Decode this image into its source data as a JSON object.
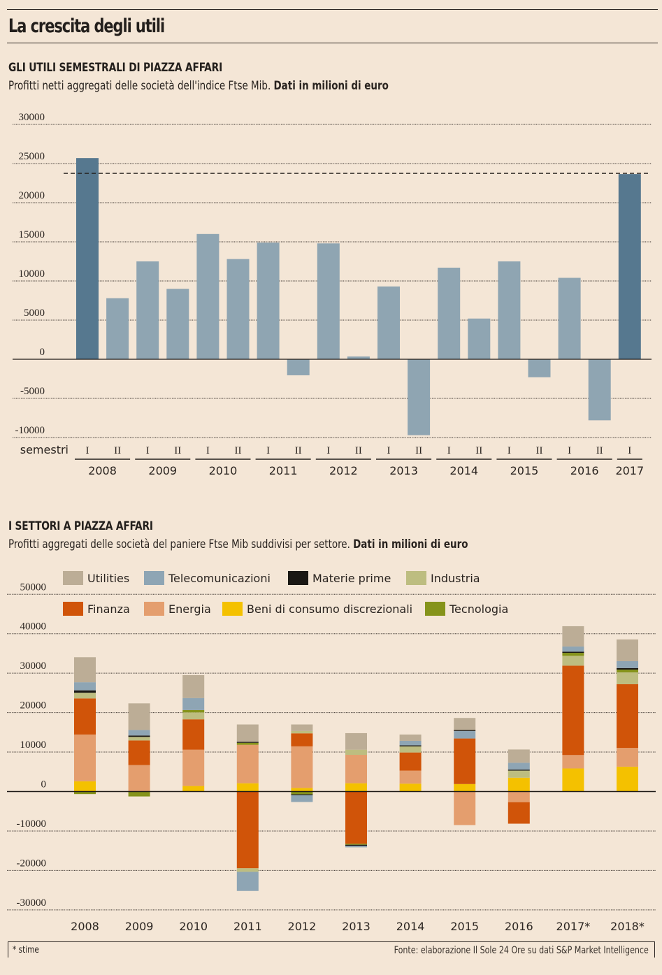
{
  "header": {
    "title": "La crescita degli utili"
  },
  "footer": {
    "note": "* stime",
    "source": "Fonte: elaborazione Il Sole 24 Ore su dati S&P Market Intelligence"
  },
  "colors": {
    "background": "#f4e6d6",
    "bar_highlight": "#56788f",
    "bar_normal": "#8fa5b2",
    "Utilities": "#bcad96",
    "Telecomunicazioni": "#8ea5b4",
    "Materie prime": "#1a1814",
    "Industria": "#bdbd80",
    "Finanza": "#d05409",
    "Energia": "#e49e6e",
    "Beni di consumo discrezionali": "#f4c100",
    "Tecnologia": "#85931a"
  },
  "chart_data": [
    {
      "type": "bar",
      "title": "GLI UTILI SEMESTRALI DI PIAZZA AFFARI",
      "subtitle": "Profitti netti aggregati delle società dell'indice Ftse Mib.",
      "subtitle_bold": "Dati in milioni di euro",
      "xlabel": "semestri",
      "ylabel": "",
      "ylim": [
        -10000,
        30000
      ],
      "yticks": [
        30000,
        25000,
        20000,
        15000,
        10000,
        5000,
        0,
        -5000,
        -10000
      ],
      "ytick_labels": [
        "30000",
        "25000",
        "20000",
        "15000",
        "10000",
        "5000",
        "0",
        "-5000",
        "-10000"
      ],
      "grid": true,
      "reference_line": {
        "value": 23750,
        "style": "dashed"
      },
      "years": [
        "2008",
        "2009",
        "2010",
        "2011",
        "2012",
        "2013",
        "2014",
        "2015",
        "2016",
        "2017"
      ],
      "semesters": [
        {
          "year": "2008",
          "sem": "I",
          "value": 25700,
          "highlight": true
        },
        {
          "year": "2008",
          "sem": "II",
          "value": 7800,
          "highlight": false
        },
        {
          "year": "2009",
          "sem": "I",
          "value": 12500,
          "highlight": false
        },
        {
          "year": "2009",
          "sem": "II",
          "value": 9000,
          "highlight": false
        },
        {
          "year": "2010",
          "sem": "I",
          "value": 16000,
          "highlight": false
        },
        {
          "year": "2010",
          "sem": "II",
          "value": 12800,
          "highlight": false
        },
        {
          "year": "2011",
          "sem": "I",
          "value": 14900,
          "highlight": false
        },
        {
          "year": "2011",
          "sem": "II",
          "value": -2050,
          "highlight": false
        },
        {
          "year": "2012",
          "sem": "I",
          "value": 14800,
          "highlight": false
        },
        {
          "year": "2012",
          "sem": "II",
          "value": 350,
          "highlight": false
        },
        {
          "year": "2013",
          "sem": "I",
          "value": 9300,
          "highlight": false
        },
        {
          "year": "2013",
          "sem": "II",
          "value": -9700,
          "highlight": false
        },
        {
          "year": "2014",
          "sem": "I",
          "value": 11700,
          "highlight": false
        },
        {
          "year": "2014",
          "sem": "II",
          "value": 5200,
          "highlight": false
        },
        {
          "year": "2015",
          "sem": "I",
          "value": 12500,
          "highlight": false
        },
        {
          "year": "2015",
          "sem": "II",
          "value": -2300,
          "highlight": false
        },
        {
          "year": "2016",
          "sem": "I",
          "value": 10400,
          "highlight": false
        },
        {
          "year": "2016",
          "sem": "II",
          "value": -7800,
          "highlight": false
        },
        {
          "year": "2017",
          "sem": "I",
          "value": 23650,
          "highlight": true
        }
      ]
    },
    {
      "type": "bar",
      "stacked": true,
      "title": "I SETTORI A PIAZZA AFFARI",
      "subtitle": "Profitti aggregati delle società del paniere Ftse Mib suddivisi per settore.",
      "subtitle_bold": "Dati in milioni di euro",
      "xlabel": "",
      "ylabel": "",
      "ylim": [
        -30000,
        50000
      ],
      "yticks": [
        50000,
        40000,
        30000,
        20000,
        10000,
        0,
        -10000,
        -20000,
        -30000
      ],
      "ytick_labels": [
        "50000",
        "40000",
        "30000",
        "20000",
        "10000",
        "0",
        "-10000",
        "-20000",
        "-30000"
      ],
      "grid": true,
      "legend_position": "top",
      "legend": [
        [
          "Utilities",
          "Telecomunicazioni",
          "Materie prime",
          "Industria"
        ],
        [
          "Finanza",
          "Energia",
          "Beni di consumo discrezionali",
          "Tecnologia"
        ]
      ],
      "categories": [
        "2008",
        "2009",
        "2010",
        "2011",
        "2012",
        "2013",
        "2014",
        "2015",
        "2016",
        "2017*",
        "2018*"
      ],
      "stacks": [
        {
          "pos": [
            [
              "Beni di consumo discrezionali",
              2600
            ],
            [
              "Energia",
              11850
            ],
            [
              "Finanza",
              9150
            ],
            [
              "Industria",
              1450
            ],
            [
              "Materie prime",
              600
            ],
            [
              "Telecomunicazioni",
              2050
            ],
            [
              "Utilities",
              6350
            ]
          ],
          "neg": [
            [
              "Tecnologia",
              -650
            ]
          ]
        },
        {
          "pos": [
            [
              "Energia",
              6700
            ],
            [
              "Finanza",
              6250
            ],
            [
              "Industria",
              900
            ],
            [
              "Materie prime",
              350
            ],
            [
              "Telecomunicazioni",
              1400
            ],
            [
              "Utilities",
              6750
            ]
          ],
          "neg": [
            [
              "Tecnologia",
              -1250
            ]
          ]
        },
        {
          "pos": [
            [
              "Beni di consumo discrezionali",
              1400
            ],
            [
              "Energia",
              9200
            ],
            [
              "Finanza",
              7700
            ],
            [
              "Industria",
              1750
            ],
            [
              "Tecnologia",
              600
            ],
            [
              "Telecomunicazioni",
              3050
            ],
            [
              "Utilities",
              5800
            ]
          ],
          "neg": []
        },
        {
          "pos": [
            [
              "Beni di consumo discrezionali",
              2100
            ],
            [
              "Energia",
              9750
            ],
            [
              "Tecnologia",
              500
            ],
            [
              "Materie prime",
              250
            ],
            [
              "Utilities",
              4400
            ]
          ],
          "neg": [
            [
              "Finanza",
              -19450
            ],
            [
              "Industria",
              -900
            ],
            [
              "Telecomunicazioni",
              -4850
            ]
          ]
        },
        {
          "pos": [
            [
              "Beni di consumo discrezionali",
              900
            ],
            [
              "Energia",
              10550
            ],
            [
              "Finanza",
              3300
            ],
            [
              "Industria",
              600
            ],
            [
              "Utilities",
              1650
            ]
          ],
          "neg": [
            [
              "Tecnologia",
              -700
            ],
            [
              "Materie prime",
              -200
            ],
            [
              "Telecomunicazioni",
              -1750
            ]
          ]
        },
        {
          "pos": [
            [
              "Beni di consumo discrezionali",
              2100
            ],
            [
              "Energia",
              7200
            ],
            [
              "Industria",
              1300
            ],
            [
              "Utilities",
              4200
            ]
          ],
          "neg": [
            [
              "Finanza",
              -13250
            ],
            [
              "Tecnologia",
              -250
            ],
            [
              "Materie prime",
              -250
            ],
            [
              "Telecomunicazioni",
              -400
            ]
          ]
        },
        {
          "pos": [
            [
              "Beni di consumo discrezionali",
              2000
            ],
            [
              "Energia",
              3300
            ],
            [
              "Finanza",
              4600
            ],
            [
              "Industria",
              1550
            ],
            [
              "Materie prime",
              250
            ],
            [
              "Telecomunicazioni",
              1150
            ],
            [
              "Utilities",
              1600
            ]
          ],
          "neg": []
        },
        {
          "pos": [
            [
              "Beni di consumo discrezionali",
              1900
            ],
            [
              "Finanza",
              11550
            ],
            [
              "Telecomunicazioni",
              1900
            ],
            [
              "Materie prime",
              250
            ],
            [
              "Utilities",
              3050
            ]
          ],
          "neg": [
            [
              "Energia",
              -8500
            ]
          ]
        },
        {
          "pos": [
            [
              "Beni di consumo discrezionali",
              3500
            ],
            [
              "Industria",
              1800
            ],
            [
              "Materie prime",
              250
            ],
            [
              "Telecomunicazioni",
              1750
            ],
            [
              "Utilities",
              3350
            ]
          ],
          "neg": [
            [
              "Energia",
              -2700
            ],
            [
              "Finanza",
              -5450
            ]
          ]
        },
        {
          "pos": [
            [
              "Beni di consumo discrezionali",
              5850
            ],
            [
              "Energia",
              3400
            ],
            [
              "Finanza",
              22650
            ],
            [
              "Industria",
              2500
            ],
            [
              "Tecnologia",
              750
            ],
            [
              "Materie prime",
              300
            ],
            [
              "Telecomunicazioni",
              1300
            ],
            [
              "Utilities",
              5150
            ]
          ],
          "neg": []
        },
        {
          "pos": [
            [
              "Beni di consumo discrezionali",
              6300
            ],
            [
              "Energia",
              4750
            ],
            [
              "Finanza",
              16150
            ],
            [
              "Industria",
              3000
            ],
            [
              "Tecnologia",
              700
            ],
            [
              "Materie prime",
              400
            ],
            [
              "Telecomunicazioni",
              1750
            ],
            [
              "Utilities",
              5500
            ]
          ],
          "neg": []
        }
      ]
    }
  ]
}
